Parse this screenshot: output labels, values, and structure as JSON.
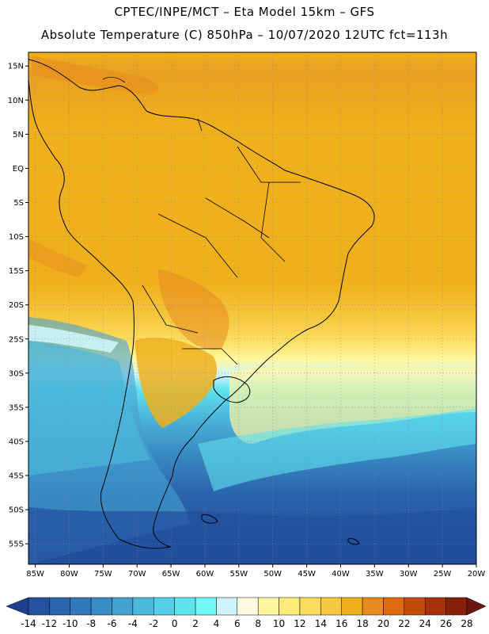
{
  "header": {
    "line1": "CPTEC/INPE/MCT –  Eta Model 15km – GFS",
    "line2": "Absolute Temperature (C) 850hPa – 10/07/2020 12UTC fct=113h"
  },
  "map": {
    "lat_labels": [
      "15N",
      "10N",
      "5N",
      "EQ",
      "5S",
      "10S",
      "15S",
      "20S",
      "25S",
      "30S",
      "35S",
      "40S",
      "45S",
      "50S",
      "55S"
    ],
    "lon_labels": [
      "85W",
      "80W",
      "75W",
      "70W",
      "65W",
      "60W",
      "55W",
      "50W",
      "45W",
      "40W",
      "35W",
      "30W",
      "25W",
      "20W"
    ]
  },
  "colorbar": {
    "labels": [
      "-14",
      "-12",
      "-10",
      "-8",
      "-6",
      "-4",
      "-2",
      "0",
      "2",
      "4",
      "6",
      "8",
      "10",
      "12",
      "14",
      "16",
      "18",
      "20",
      "22",
      "24",
      "26",
      "28"
    ],
    "colors": [
      "#1f3f8f",
      "#23529f",
      "#2a65ad",
      "#2f78b9",
      "#3a8cc5",
      "#44a2d2",
      "#4cb8dc",
      "#55cde6",
      "#5fe3ee",
      "#72f7f7",
      "#cdf5fb",
      "#fffbe3",
      "#fff7a0",
      "#feeb78",
      "#fbdc5d",
      "#f6c83f",
      "#f0b01c",
      "#e88b1f",
      "#dd6a10",
      "#c44a0a",
      "#a8320a",
      "#862009",
      "#6b1510"
    ]
  }
}
